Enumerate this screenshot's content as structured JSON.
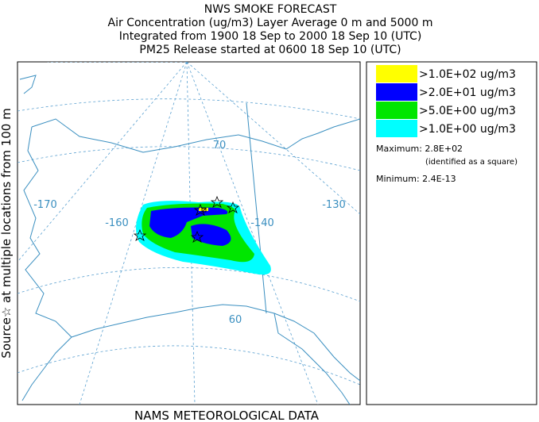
{
  "header": {
    "lines": [
      "NWS SMOKE FORECAST",
      "Air Concentration (ug/m3) Layer Average    0 m and  5000 m",
      "Integrated from 1900 18 Sep to 2000 18 Sep 10 (UTC)",
      "PM25 Release started at 0600 18 Sep 10 (UTC)"
    ]
  },
  "side_label": "Source☆  at multiple locations   from   100 m",
  "footer": "NAMS METEOROLOGICAL DATA",
  "legend": {
    "items": [
      {
        "label": ">1.0E+02 ug/m3",
        "color": "#ffff00"
      },
      {
        "label": ">2.0E+01 ug/m3",
        "color": "#0000ff"
      },
      {
        "label": ">5.0E+00 ug/m3",
        "color": "#00e600"
      },
      {
        "label": ">1.0E+00 ug/m3",
        "color": "#00ffff"
      }
    ],
    "maximum": "Maximum: 2.8E+02",
    "max_note": "(identified as a square)",
    "minimum": "Minimum: 2.4E-13"
  },
  "map": {
    "grid_labels": [
      "-170",
      "-160",
      "-140",
      "-130",
      "70",
      "60"
    ]
  }
}
